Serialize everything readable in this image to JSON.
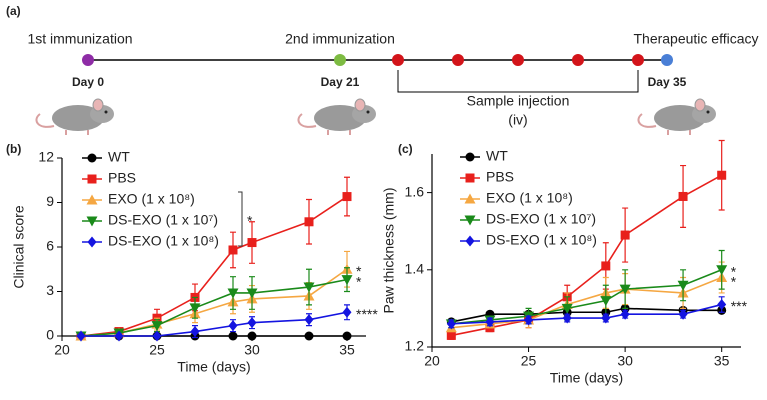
{
  "timeline": {
    "panel": "(a)",
    "events": [
      {
        "label": "1st immunization",
        "day": "Day 0"
      },
      {
        "label": "2nd immunization",
        "day": "Day 21"
      },
      {
        "label": "Therapeutic efficacy",
        "day": "Day 35"
      }
    ],
    "injection_label": "Sample injection",
    "injection_route": "(iv)"
  },
  "chart_data": [
    {
      "type": "line",
      "panel": "(b)",
      "x_label": "Time (days)",
      "y_label": "Clinical score",
      "x": [
        21,
        23,
        25,
        27,
        29,
        30,
        33,
        35
      ],
      "xlim": [
        20,
        36
      ],
      "xticks": [
        20,
        25,
        30,
        35
      ],
      "ylim": [
        0,
        12
      ],
      "yticks": [
        0,
        3,
        6,
        9,
        12
      ],
      "bracket_annotation": "*",
      "series": [
        {
          "name": "WT",
          "color": "#000000",
          "marker": "circle",
          "values": [
            0,
            0,
            0,
            0,
            0,
            0,
            0,
            0
          ],
          "errors": [
            0,
            0,
            0,
            0,
            0,
            0,
            0,
            0
          ]
        },
        {
          "name": "PBS",
          "color": "#e8201c",
          "marker": "square",
          "values": [
            0,
            0.3,
            1.2,
            2.6,
            5.8,
            6.3,
            7.7,
            9.4
          ],
          "errors": [
            0,
            0.2,
            0.6,
            0.9,
            1.2,
            1.4,
            1.5,
            1.3
          ]
        },
        {
          "name": "EXO (1 x 10⁸)",
          "color": "#f5a742",
          "marker": "triangle-up",
          "values": [
            0,
            0.2,
            0.8,
            1.5,
            2.3,
            2.5,
            2.7,
            4.5
          ],
          "errors": [
            0,
            0.1,
            0.4,
            0.6,
            0.8,
            0.9,
            0.9,
            1.2
          ],
          "significance": "*"
        },
        {
          "name": "DS-EXO (1 x 10⁷)",
          "color": "#1a8a1a",
          "marker": "triangle-down",
          "values": [
            0,
            0.2,
            0.7,
            1.9,
            2.9,
            2.9,
            3.3,
            3.8
          ],
          "errors": [
            0,
            0.1,
            0.4,
            0.7,
            1.1,
            1.1,
            1.2,
            0.8
          ],
          "significance": "*"
        },
        {
          "name": "DS-EXO (1 x 10⁸)",
          "color": "#1414e0",
          "marker": "diamond",
          "values": [
            0,
            0,
            0,
            0.3,
            0.7,
            0.9,
            1.1,
            1.6
          ],
          "errors": [
            0,
            0,
            0,
            0.4,
            0.4,
            0.4,
            0.4,
            0.5
          ],
          "significance": "****"
        }
      ]
    },
    {
      "type": "line",
      "panel": "(c)",
      "x_label": "Time (days)",
      "y_label": "Paw thickness (mm)",
      "x": [
        21,
        23,
        25,
        27,
        29,
        30,
        33,
        35
      ],
      "xlim": [
        20,
        36
      ],
      "xticks": [
        20,
        25,
        30,
        35
      ],
      "ylim": [
        1.2,
        1.7
      ],
      "yticks": [
        1.2,
        1.4,
        1.6
      ],
      "series": [
        {
          "name": "WT",
          "color": "#000000",
          "marker": "circle",
          "values": [
            1.265,
            1.285,
            1.285,
            1.29,
            1.29,
            1.3,
            1.295,
            1.295
          ],
          "errors": [
            0.005,
            0.005,
            0.005,
            0.005,
            0.005,
            0.005,
            0.005,
            0.005
          ]
        },
        {
          "name": "PBS",
          "color": "#e8201c",
          "marker": "square",
          "values": [
            1.23,
            1.25,
            1.27,
            1.33,
            1.41,
            1.49,
            1.59,
            1.645
          ],
          "errors": [
            0.01,
            0.01,
            0.02,
            0.03,
            0.06,
            0.07,
            0.08,
            0.09
          ]
        },
        {
          "name": "EXO (1 x 10⁸)",
          "color": "#f5a742",
          "marker": "triangle-up",
          "values": [
            1.25,
            1.26,
            1.27,
            1.31,
            1.34,
            1.35,
            1.34,
            1.38
          ],
          "errors": [
            0.01,
            0.01,
            0.02,
            0.03,
            0.04,
            0.04,
            0.04,
            0.04
          ],
          "significance": "*"
        },
        {
          "name": "DS-EXO (1 x 10⁷)",
          "color": "#1a8a1a",
          "marker": "triangle-down",
          "values": [
            1.26,
            1.27,
            1.28,
            1.3,
            1.32,
            1.35,
            1.36,
            1.4
          ],
          "errors": [
            0.01,
            0.01,
            0.02,
            0.03,
            0.04,
            0.05,
            0.04,
            0.05
          ],
          "significance": "*"
        },
        {
          "name": "DS-EXO (1 x 10⁸)",
          "color": "#1414e0",
          "marker": "diamond",
          "values": [
            1.26,
            1.265,
            1.27,
            1.275,
            1.275,
            1.285,
            1.285,
            1.31
          ],
          "errors": [
            0.01,
            0.01,
            0.01,
            0.01,
            0.01,
            0.01,
            0.01,
            0.02
          ],
          "significance": "***"
        }
      ]
    }
  ]
}
